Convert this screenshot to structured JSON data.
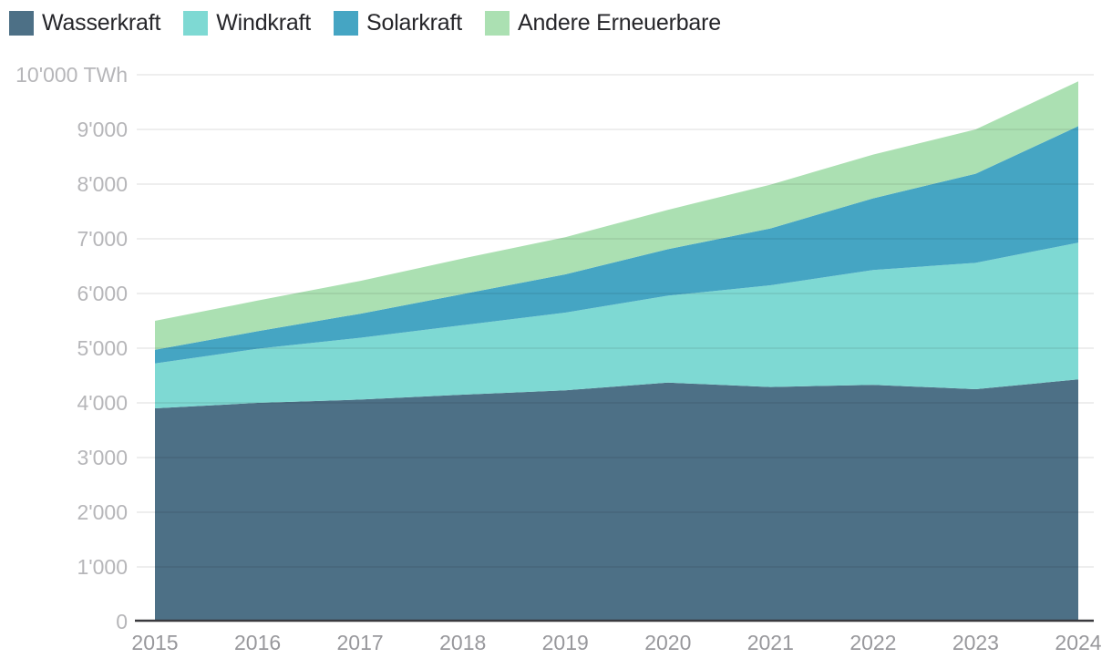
{
  "chart_data": {
    "type": "area",
    "stacked": true,
    "title": "",
    "unit": "TWh",
    "grid": true,
    "legend_position": "top-left",
    "x": [
      2015,
      2016,
      2017,
      2018,
      2019,
      2020,
      2021,
      2022,
      2023,
      2024
    ],
    "x_tick_labels": [
      "2015",
      "2016",
      "2017",
      "2018",
      "2019",
      "2020",
      "2021",
      "2022",
      "2023",
      "2024"
    ],
    "series": [
      {
        "name": "Wasserkraft",
        "color": "#4d7086",
        "values": [
          3900,
          4000,
          4060,
          4150,
          4230,
          4370,
          4290,
          4330,
          4250,
          4430
        ]
      },
      {
        "name": "Windkraft",
        "color": "#7ed9d3",
        "values": [
          820,
          990,
          1130,
          1270,
          1420,
          1590,
          1860,
          2100,
          2310,
          2500
        ]
      },
      {
        "name": "Solarkraft",
        "color": "#45a5c3",
        "values": [
          250,
          320,
          440,
          570,
          700,
          850,
          1040,
          1310,
          1630,
          2130
        ]
      },
      {
        "name": "Andere Erneuerbare",
        "color": "#abe0b2",
        "values": [
          530,
          560,
          600,
          650,
          680,
          720,
          800,
          800,
          810,
          820
        ]
      }
    ],
    "stacked_totals": [
      5500,
      5870,
      6230,
      6640,
      7030,
      7530,
      7990,
      8540,
      9000,
      9880
    ],
    "y_axis": {
      "min": 0,
      "max": 10000,
      "step": 1000,
      "tick_labels": [
        "0",
        "1'000",
        "2'000",
        "3'000",
        "4'000",
        "5'000",
        "6'000",
        "7'000",
        "8'000",
        "9'000",
        "10'000 TWh"
      ]
    }
  },
  "colors": {
    "background": "#ffffff",
    "grid_overlay": "rgba(0,0,0,0.085)",
    "baseline": "#3a3a3e",
    "y_tick_text": "#b6b6b9",
    "x_tick_text": "#98989c",
    "legend_text": "#26262a"
  }
}
